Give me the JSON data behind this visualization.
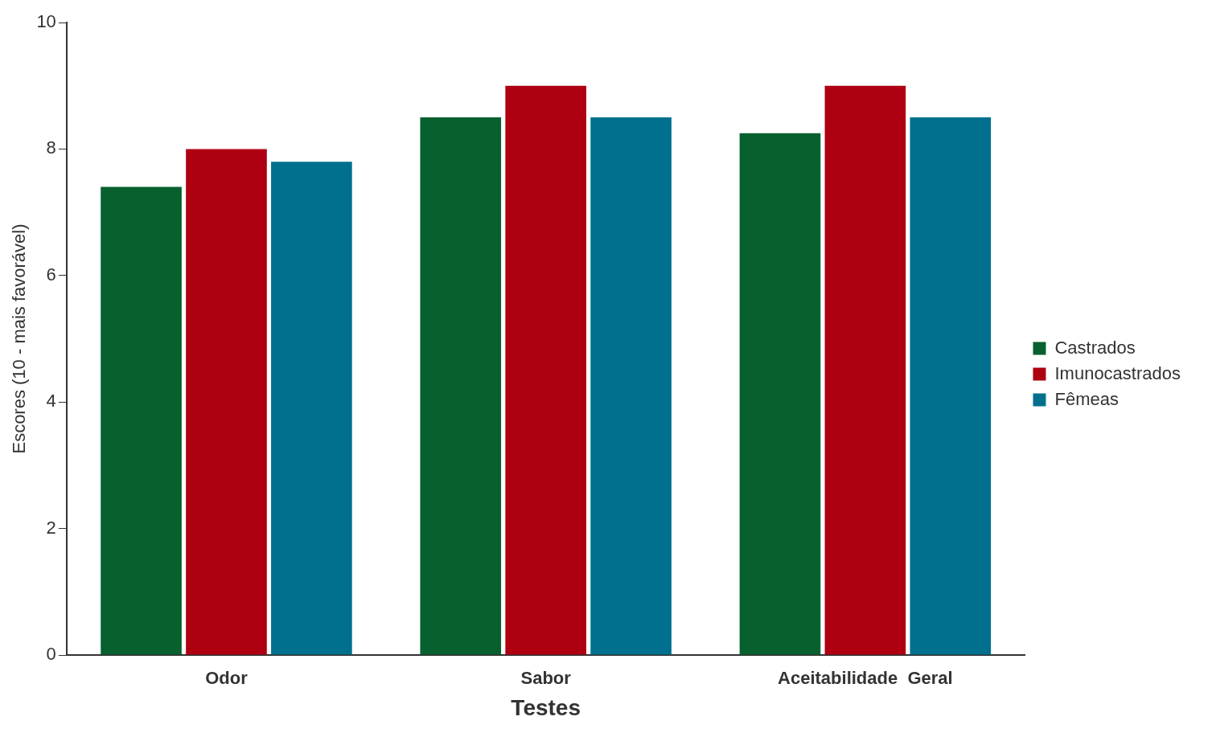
{
  "chart_data": {
    "type": "bar",
    "xlabel": "Testes",
    "ylabel": "Escores (10 - mais favorável)",
    "categories": [
      "Odor",
      "Sabor",
      "Aceitabilidade  Geral"
    ],
    "series": [
      {
        "name": "Castrados",
        "color": "#08602f",
        "values": [
          7.4,
          8.5,
          8.25
        ]
      },
      {
        "name": "Imunocastrados",
        "color": "#ae0011",
        "values": [
          8.0,
          9.0,
          9.0
        ]
      },
      {
        "name": "Fêmeas",
        "color": "#00708e",
        "values": [
          7.8,
          8.5,
          8.5
        ]
      }
    ],
    "ylim": [
      0,
      10
    ],
    "yticks": [
      0,
      2,
      4,
      6,
      8,
      10
    ],
    "grid": false,
    "legend": "right"
  }
}
